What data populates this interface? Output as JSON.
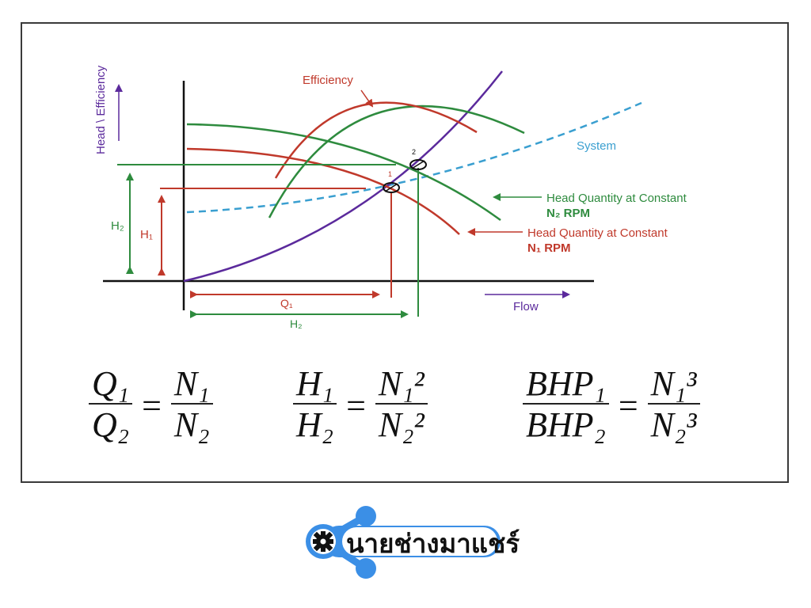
{
  "diagram": {
    "axis_y_label": "Head \\ Efficiency",
    "axis_x_label": "Flow",
    "efficiency_label": "Efficiency",
    "system_label": "System",
    "h2_curve_label_line1": "Head Quantity at Constant",
    "h2_curve_label_line2": "N₂ RPM",
    "h1_curve_label_line1": "Head Quantity at Constant",
    "h1_curve_label_line2": "N₁ RPM",
    "h2_left_label": "H₂",
    "h1_left_label": "H₁",
    "q1_label": "Q₁",
    "h2_bottom_label": "H₂",
    "point1_label": "1",
    "point2_label": "2",
    "colors": {
      "red": "#c0392b",
      "green": "#2e8b3e",
      "purple": "#5b2a9c",
      "system": "#3a9fd0",
      "black": "#111111"
    }
  },
  "formulas": {
    "f1": {
      "num": "Q₁",
      "den": "Q₂",
      "eq": "=",
      "rnum": "N₁",
      "rden": "N₂"
    },
    "f2": {
      "num": "H₁",
      "den": "H₂",
      "eq": "=",
      "rnum": "N₁²",
      "rden": "N₂²"
    },
    "f3": {
      "num": "BHP₁",
      "den": "BHP₂",
      "eq": "=",
      "rnum": "N₁³",
      "rden": "N₂³"
    }
  },
  "brand": {
    "name": "นายช่างมาแชร์",
    "logo_color": "#3b8fe6",
    "gear_icon": "gear-icon"
  }
}
